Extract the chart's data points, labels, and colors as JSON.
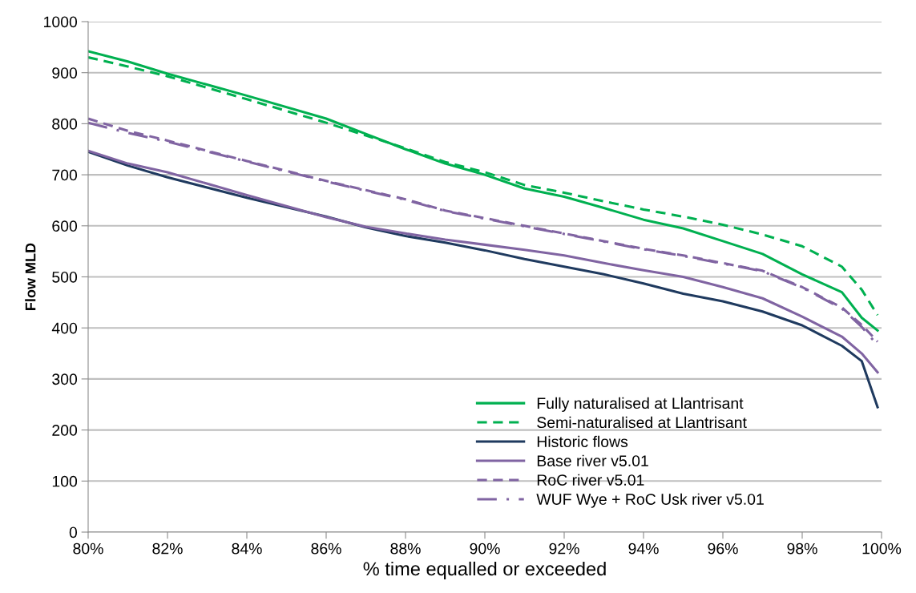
{
  "chart_data": {
    "type": "line",
    "xlabel": "% time equalled or exceeded",
    "ylabel": "Flow MLD",
    "x": [
      80,
      81,
      82,
      84,
      86,
      87,
      88,
      89,
      90,
      91,
      92,
      93,
      94,
      95,
      96,
      97,
      98,
      99,
      99.5,
      99.9
    ],
    "series": [
      {
        "name": "Fully naturalised at Llantrisant",
        "color": "#00b050",
        "line_style": "solid",
        "values": [
          942,
          922,
          898,
          855,
          810,
          780,
          750,
          722,
          700,
          673,
          657,
          635,
          612,
          595,
          570,
          545,
          505,
          470,
          420,
          395
        ]
      },
      {
        "name": "Semi-naturalised at Llantrisant",
        "color": "#00b050",
        "line_style": "dashed",
        "values": [
          930,
          912,
          893,
          848,
          802,
          777,
          752,
          725,
          705,
          680,
          665,
          648,
          632,
          618,
          602,
          583,
          560,
          520,
          475,
          425
        ]
      },
      {
        "name": "Historic flows",
        "color": "#1f3a5f",
        "line_style": "solid",
        "values": [
          745,
          718,
          695,
          655,
          618,
          597,
          580,
          567,
          552,
          535,
          520,
          505,
          487,
          467,
          452,
          432,
          405,
          365,
          335,
          245
        ]
      },
      {
        "name": "Base river v5.01",
        "color": "#8064a2",
        "line_style": "solid",
        "values": [
          747,
          722,
          705,
          660,
          617,
          598,
          585,
          573,
          563,
          553,
          542,
          527,
          513,
          500,
          480,
          458,
          422,
          383,
          350,
          313
        ]
      },
      {
        "name": "RoC river v5.01",
        "color": "#8064a2",
        "line_style": "dashed",
        "values": [
          810,
          786,
          767,
          727,
          688,
          670,
          652,
          630,
          615,
          600,
          585,
          570,
          555,
          542,
          527,
          512,
          480,
          440,
          406,
          373
        ]
      },
      {
        "name": "WUF Wye + RoC Usk river v5.01",
        "color": "#8064a2",
        "line_style": "dashdot",
        "values": [
          802,
          782,
          765,
          726,
          687,
          669,
          651,
          629,
          614,
          599,
          584,
          569,
          554,
          541,
          526,
          511,
          479,
          438,
          402,
          366
        ]
      }
    ],
    "xlim": [
      80,
      100
    ],
    "xticks": [
      {
        "value": 80,
        "label": "80%"
      },
      {
        "value": 82,
        "label": "82%"
      },
      {
        "value": 84,
        "label": "84%"
      },
      {
        "value": 86,
        "label": "86%"
      },
      {
        "value": 88,
        "label": "88%"
      },
      {
        "value": 90,
        "label": "90%"
      },
      {
        "value": 92,
        "label": "92%"
      },
      {
        "value": 94,
        "label": "94%"
      },
      {
        "value": 96,
        "label": "96%"
      },
      {
        "value": 98,
        "label": "98%"
      },
      {
        "value": 100,
        "label": "100%"
      }
    ],
    "ylim": [
      0,
      1000
    ],
    "yticks": [
      0,
      100,
      200,
      300,
      400,
      500,
      600,
      700,
      800,
      900,
      1000
    ],
    "grid": "y",
    "legend": "bottom right",
    "marker": "none"
  }
}
